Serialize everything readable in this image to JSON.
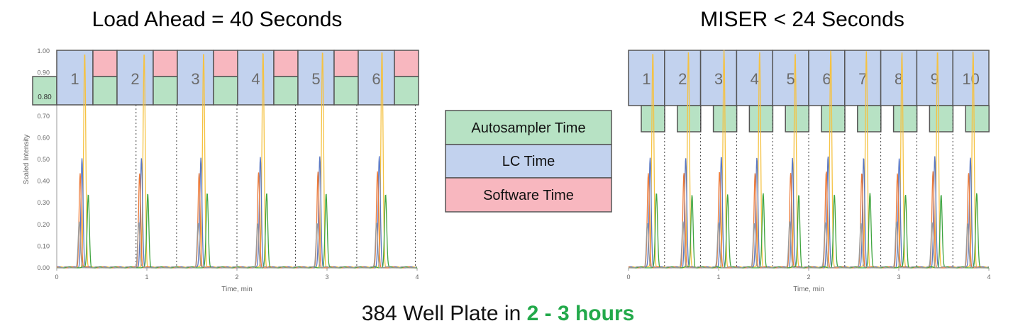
{
  "colors": {
    "autosampler": "#b7e2c4",
    "lc": "#c2d2ee",
    "software": "#f8b7bf",
    "box_stroke": "#555555",
    "yellow_trace": "#f5c242",
    "orange_trace": "#ec7b3a",
    "blue_trace": "#5a78c4",
    "green_trace": "#3fa540",
    "gray_trace": "#9a9a9a",
    "footer_highlight": "#22a94a"
  },
  "legend": [
    {
      "key": "autosampler",
      "label": "Autosampler Time"
    },
    {
      "key": "lc",
      "label": "LC Time"
    },
    {
      "key": "software",
      "label": "Software Time"
    }
  ],
  "footer": {
    "prefix": "384 Well Plate in ",
    "highlight": "2 - 3 hours"
  },
  "chart_data": [
    {
      "type": "line",
      "title": "Load Ahead = 40 Seconds",
      "xlabel": "Time, min",
      "ylabel": "Scaled Intensity",
      "xlim": [
        0,
        4
      ],
      "ylim": [
        0,
        1.0
      ],
      "x_ticks": [
        "0",
        "1",
        "2",
        "3",
        "4"
      ],
      "y_ticks": [
        "0.00",
        "0.10",
        "0.20",
        "0.30",
        "0.40",
        "0.50",
        "0.60",
        "0.70",
        "0.80",
        "0.90",
        "1.00"
      ],
      "grid": false,
      "injections": [
        "1",
        "2",
        "3",
        "4",
        "5",
        "6"
      ],
      "injection_interval_min": 0.66,
      "first_peak_min": 0.28,
      "separators_min": [
        0.88,
        1.33,
        2.0,
        2.65,
        3.33,
        3.98
      ],
      "series": [
        {
          "color_key": "yellow_trace",
          "peak": 1.0,
          "offset_min": 0.03
        },
        {
          "color_key": "blue_trace",
          "peak": 0.51,
          "offset_min": 0.0
        },
        {
          "color_key": "orange_trace",
          "peak": 0.44,
          "offset_min": -0.02
        },
        {
          "color_key": "green_trace",
          "peak": 0.34,
          "offset_min": 0.07
        },
        {
          "color_key": "gray_trace",
          "peak": 0.21,
          "offset_min": -0.03
        }
      ]
    },
    {
      "type": "line",
      "title": "MISER < 24 Seconds",
      "xlabel": "Time, min",
      "ylabel": "",
      "xlim": [
        0,
        4
      ],
      "ylim": [
        0,
        1.0
      ],
      "x_ticks": [
        "0",
        "1",
        "2",
        "3",
        "4"
      ],
      "grid": false,
      "injections": [
        "1",
        "2",
        "3",
        "4",
        "5",
        "6",
        "7",
        "8",
        "9",
        "10"
      ],
      "injection_interval_min": 0.395,
      "first_peak_min": 0.24,
      "series": [
        {
          "color_key": "yellow_trace",
          "peak": 1.0,
          "offset_min": 0.03
        },
        {
          "color_key": "blue_trace",
          "peak": 0.51,
          "offset_min": 0.0
        },
        {
          "color_key": "orange_trace",
          "peak": 0.44,
          "offset_min": -0.02
        },
        {
          "color_key": "green_trace",
          "peak": 0.34,
          "offset_min": 0.07
        },
        {
          "color_key": "gray_trace",
          "peak": 0.21,
          "offset_min": -0.03
        }
      ]
    }
  ]
}
